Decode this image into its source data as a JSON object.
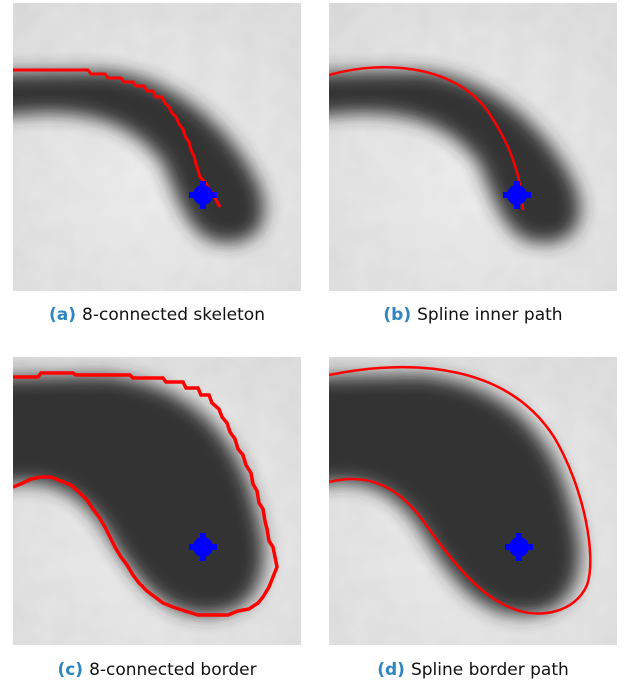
{
  "figure": {
    "panels": [
      {
        "id": "a",
        "tag": "(a)",
        "caption": "8-connected skeleton"
      },
      {
        "id": "b",
        "tag": "(b)",
        "caption": "Spline inner path"
      },
      {
        "id": "c",
        "tag": "(c)",
        "caption": "8-connected border"
      },
      {
        "id": "d",
        "tag": "(d)",
        "caption": "Spline border path"
      }
    ]
  },
  "colors": {
    "path": "#ff0000",
    "marker": "#0000ff",
    "caption_tag": "#2e86c1"
  }
}
